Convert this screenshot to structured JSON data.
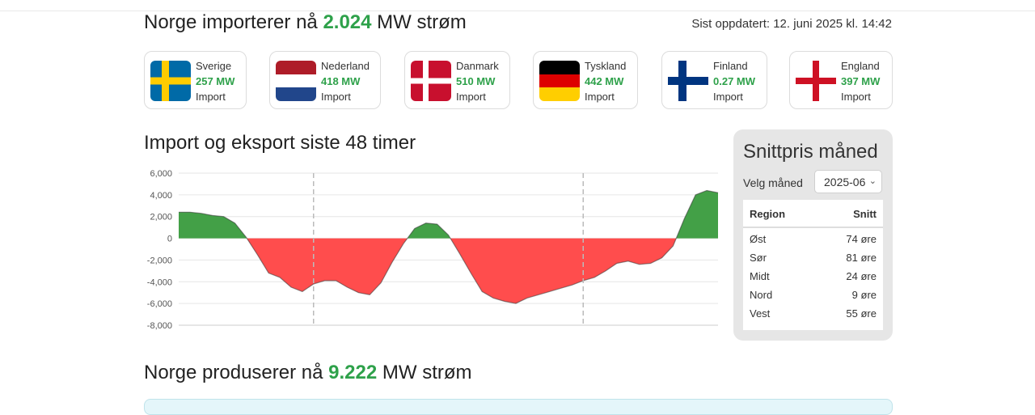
{
  "header": {
    "title_prefix": "Norge importerer nå",
    "title_value": "2.024",
    "title_suffix": "MW strøm",
    "updated": "Sist oppdatert: 12. juni 2025 kl. 14:42"
  },
  "countries": [
    {
      "name": "Sverige",
      "mw": "257 MW",
      "status": "Import",
      "flag": "sweden-flag-icon"
    },
    {
      "name": "Nederland",
      "mw": "418 MW",
      "status": "Import",
      "flag": "netherlands-flag-icon"
    },
    {
      "name": "Danmark",
      "mw": "510 MW",
      "status": "Import",
      "flag": "denmark-flag-icon"
    },
    {
      "name": "Tyskland",
      "mw": "442 MW",
      "status": "Import",
      "flag": "germany-flag-icon"
    },
    {
      "name": "Finland",
      "mw": "0.27 MW",
      "status": "Import",
      "flag": "finland-flag-icon"
    },
    {
      "name": "England",
      "mw": "397 MW",
      "status": "Import",
      "flag": "england-flag-icon"
    }
  ],
  "chart_section": {
    "title": "Import og eksport siste 48 timer"
  },
  "chart_data": {
    "type": "area",
    "title": "",
    "xlabel": "",
    "ylabel": "",
    "ylim": [
      -8000,
      6000
    ],
    "yticks": [
      6000,
      4000,
      2000,
      0,
      -2000,
      -4000,
      -6000,
      -8000
    ],
    "ytick_labels": [
      "6,000",
      "4,000",
      "2,000",
      "0",
      "-2,000",
      "-4,000",
      "-6,000",
      "-8,000"
    ],
    "grid": true,
    "positive_color": "#43a047",
    "negative_color": "#ff4d4d",
    "day_dividers": [
      12,
      36
    ],
    "x": [
      0,
      1,
      2,
      3,
      4,
      5,
      6,
      7,
      8,
      9,
      10,
      11,
      12,
      13,
      14,
      15,
      16,
      17,
      18,
      19,
      20,
      21,
      22,
      23,
      24,
      25,
      26,
      27,
      28,
      29,
      30,
      31,
      32,
      33,
      34,
      35,
      36,
      37,
      38,
      39,
      40,
      41,
      42,
      43,
      44,
      45,
      46,
      47,
      48
    ],
    "values": [
      2400,
      2400,
      2300,
      2100,
      2000,
      1400,
      100,
      -1500,
      -3200,
      -3600,
      -4500,
      -4900,
      -4200,
      -3900,
      -3900,
      -4500,
      -5000,
      -5200,
      -4100,
      -2200,
      -500,
      900,
      1400,
      1300,
      300,
      -1400,
      -3200,
      -4900,
      -5500,
      -5800,
      -6000,
      -5500,
      -5200,
      -4900,
      -4600,
      -4300,
      -3900,
      -3600,
      -3000,
      -2300,
      -2100,
      -2400,
      -2300,
      -1800,
      -700,
      1800,
      4000,
      4400,
      4200
    ]
  },
  "sidebar": {
    "title": "Snittpris måned",
    "month_label": "Velg måned",
    "month_value": "2025-06",
    "table_headers": {
      "region": "Region",
      "avg": "Snitt"
    },
    "rows": [
      {
        "region": "Øst",
        "price": "74 øre"
      },
      {
        "region": "Sør",
        "price": "81 øre"
      },
      {
        "region": "Midt",
        "price": "24 øre"
      },
      {
        "region": "Nord",
        "price": "9 øre"
      },
      {
        "region": "Vest",
        "price": "55 øre"
      }
    ]
  },
  "production": {
    "prefix": "Norge produserer nå",
    "value": "9.222",
    "suffix": "MW strøm"
  }
}
